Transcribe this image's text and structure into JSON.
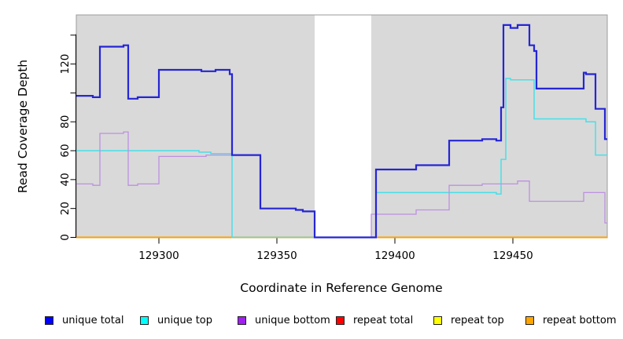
{
  "figure": {
    "kind": "R coverage step plot",
    "background": "#ffffff",
    "plot_background": "#d9d9d9",
    "plot_border_color": "#9c9c9c",
    "axis_color": "#000000"
  },
  "x_axis": {
    "label": "Coordinate in Reference Genome",
    "ticks": [
      {
        "v": 129300,
        "label": "129300"
      },
      {
        "v": 129350,
        "label": "129350"
      },
      {
        "v": 129400,
        "label": "129400"
      },
      {
        "v": 129450,
        "label": "129450"
      }
    ]
  },
  "y_axis": {
    "label": "Read Coverage Depth",
    "ticks": [
      {
        "v": 0,
        "label": "0"
      },
      {
        "v": 20,
        "label": "20"
      },
      {
        "v": 40,
        "label": "40"
      },
      {
        "v": 60,
        "label": "60"
      },
      {
        "v": 80,
        "label": "80"
      },
      {
        "v": 100,
        "label": ""
      },
      {
        "v": 120,
        "label": "120"
      },
      {
        "v": 140,
        "label": ""
      }
    ]
  },
  "legend": {
    "items": [
      {
        "label": "unique total",
        "color": "#0000ff"
      },
      {
        "label": "unique top",
        "color": "#00ffff"
      },
      {
        "label": "unique bottom",
        "color": "#a020f0"
      },
      {
        "label": "repeat total",
        "color": "#ff0000"
      },
      {
        "label": "repeat top",
        "color": "#ffff00"
      },
      {
        "label": "repeat bottom",
        "color": "#ffa500"
      }
    ]
  },
  "chart_data": {
    "type": "line",
    "style": "step",
    "title": "",
    "xlabel": "Coordinate in Reference Genome",
    "ylabel": "Read Coverage Depth",
    "xlim": [
      129265,
      129490
    ],
    "ylim": [
      0,
      154
    ],
    "grid": false,
    "plot_background": "#d9d9d9",
    "gap_region": {
      "from": 129366,
      "to": 129390,
      "color": "#ffffff"
    },
    "series": [
      {
        "name": "repeat total",
        "color": "#dd0000",
        "width": 1.3,
        "steps": [
          [
            129265,
            0
          ]
        ]
      },
      {
        "name": "repeat top",
        "color": "#f2f200",
        "width": 1.3,
        "steps": [
          [
            129265,
            0
          ]
        ]
      },
      {
        "name": "repeat bottom",
        "color": "#ff9f00",
        "width": 2,
        "steps": [
          [
            129265,
            0
          ]
        ]
      },
      {
        "name": "unique top",
        "color": "#48dfe8",
        "width": 1.5,
        "steps": [
          [
            129265,
            60
          ],
          [
            129317,
            59
          ],
          [
            129322,
            58
          ],
          [
            129331,
            0
          ],
          [
            129392,
            31
          ],
          [
            129443,
            30
          ],
          [
            129445,
            54
          ],
          [
            129447,
            110
          ],
          [
            129449,
            109
          ],
          [
            129459,
            82
          ],
          [
            129481,
            80
          ],
          [
            129485,
            57
          ]
        ]
      },
      {
        "name": "unique bottom",
        "color": "#bd90e0",
        "width": 1.3,
        "steps": [
          [
            129265,
            37
          ],
          [
            129272,
            36
          ],
          [
            129275,
            72
          ],
          [
            129285,
            73
          ],
          [
            129287,
            36
          ],
          [
            129291,
            37
          ],
          [
            129300,
            56
          ],
          [
            129320,
            57
          ],
          [
            129343,
            20
          ],
          [
            129358,
            19
          ],
          [
            129361,
            18
          ],
          [
            129366,
            0
          ],
          [
            129390,
            16
          ],
          [
            129409,
            19
          ],
          [
            129423,
            36
          ],
          [
            129437,
            37
          ],
          [
            129452,
            39
          ],
          [
            129457,
            25
          ],
          [
            129480,
            31
          ],
          [
            129489,
            10
          ]
        ]
      },
      {
        "name": "unique total",
        "color": "#2525d5",
        "width": 2.2,
        "steps": [
          [
            129265,
            98
          ],
          [
            129272,
            97
          ],
          [
            129275,
            132
          ],
          [
            129285,
            133
          ],
          [
            129287,
            96
          ],
          [
            129291,
            97
          ],
          [
            129300,
            116
          ],
          [
            129318,
            115
          ],
          [
            129324,
            116
          ],
          [
            129330,
            113
          ],
          [
            129331,
            57
          ],
          [
            129343,
            20
          ],
          [
            129358,
            19
          ],
          [
            129361,
            18
          ],
          [
            129366,
            0
          ],
          [
            129392,
            47
          ],
          [
            129409,
            50
          ],
          [
            129423,
            67
          ],
          [
            129437,
            68
          ],
          [
            129443,
            67
          ],
          [
            129445,
            90
          ],
          [
            129446,
            147
          ],
          [
            129449,
            145
          ],
          [
            129452,
            147
          ],
          [
            129457,
            133
          ],
          [
            129459,
            129
          ],
          [
            129460,
            103
          ],
          [
            129480,
            114
          ],
          [
            129481,
            113
          ],
          [
            129485,
            89
          ],
          [
            129489,
            68
          ]
        ]
      }
    ]
  }
}
